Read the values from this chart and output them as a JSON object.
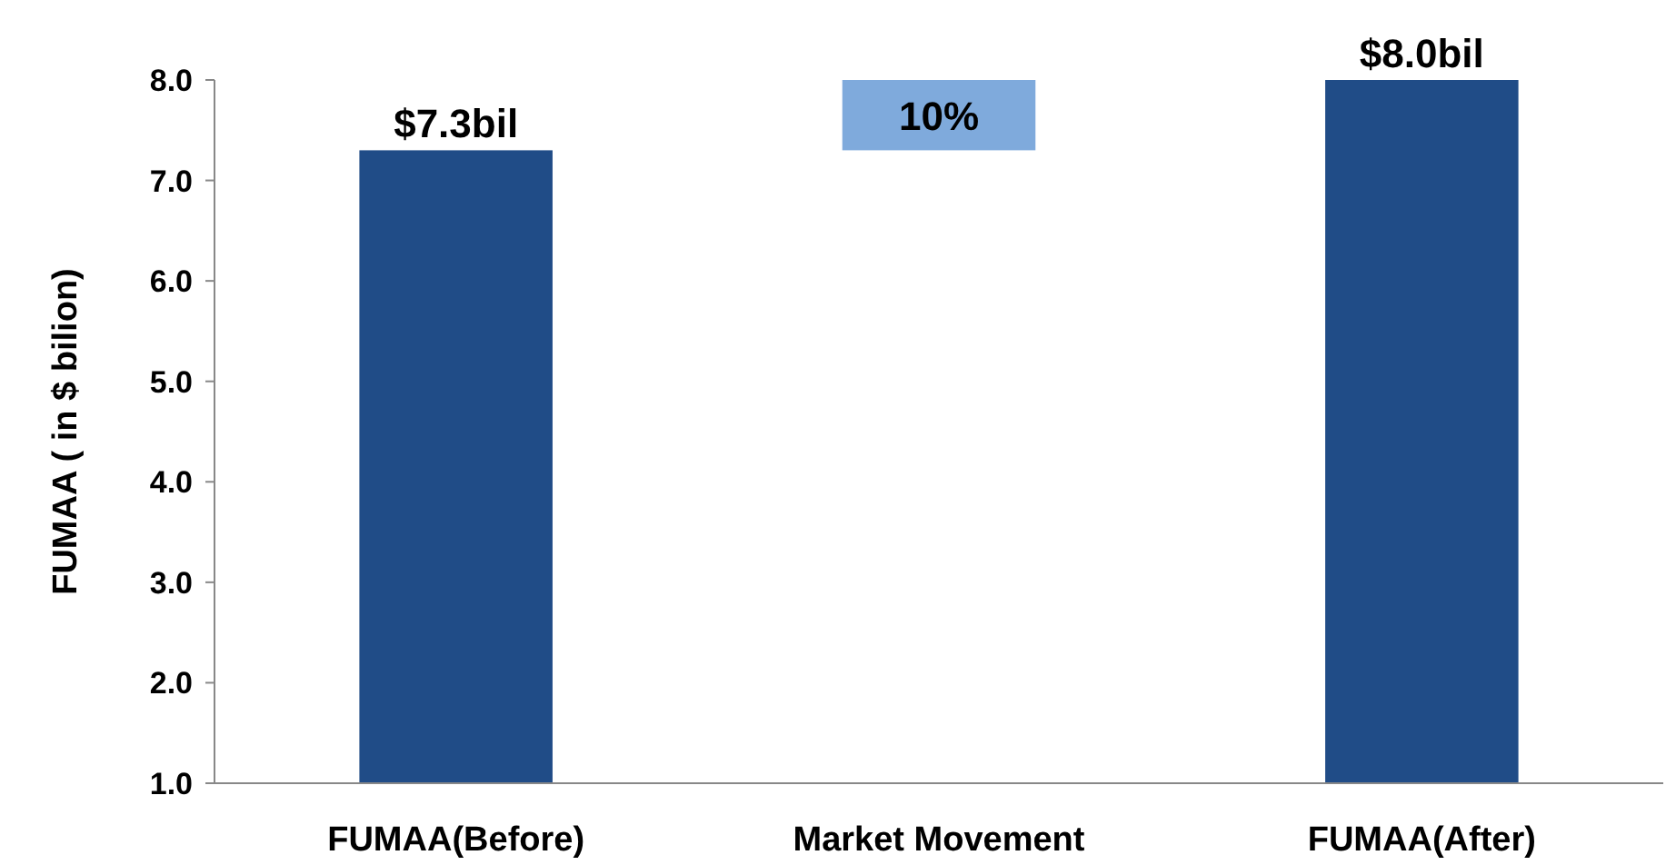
{
  "chart_data": {
    "type": "bar",
    "ylabel": "FUMAA ( in $ bilion)",
    "categories": [
      "FUMAA(Before)",
      "Market Movement",
      "FUMAA(After)"
    ],
    "values": [
      7.3,
      0.7,
      8.0
    ],
    "base": [
      null,
      7.3,
      null
    ],
    "colors": [
      "#204c87",
      "#7faadc",
      "#204c87"
    ],
    "value_labels": [
      "$7.3bil",
      null,
      "$8.0bil"
    ],
    "annotations": [
      "10%"
    ],
    "ylim": [
      1.0,
      8.0
    ],
    "yticks": [
      {
        "value": 1,
        "label": "1.0"
      },
      {
        "value": 2,
        "label": "2.0"
      },
      {
        "value": 3,
        "label": "3.0"
      },
      {
        "value": 4,
        "label": "4.0"
      },
      {
        "value": 5,
        "label": "5.0"
      },
      {
        "value": 6,
        "label": "6.0"
      },
      {
        "value": 7,
        "label": "7.0"
      },
      {
        "value": 8,
        "label": "8.0"
      }
    ],
    "grid": false
  }
}
